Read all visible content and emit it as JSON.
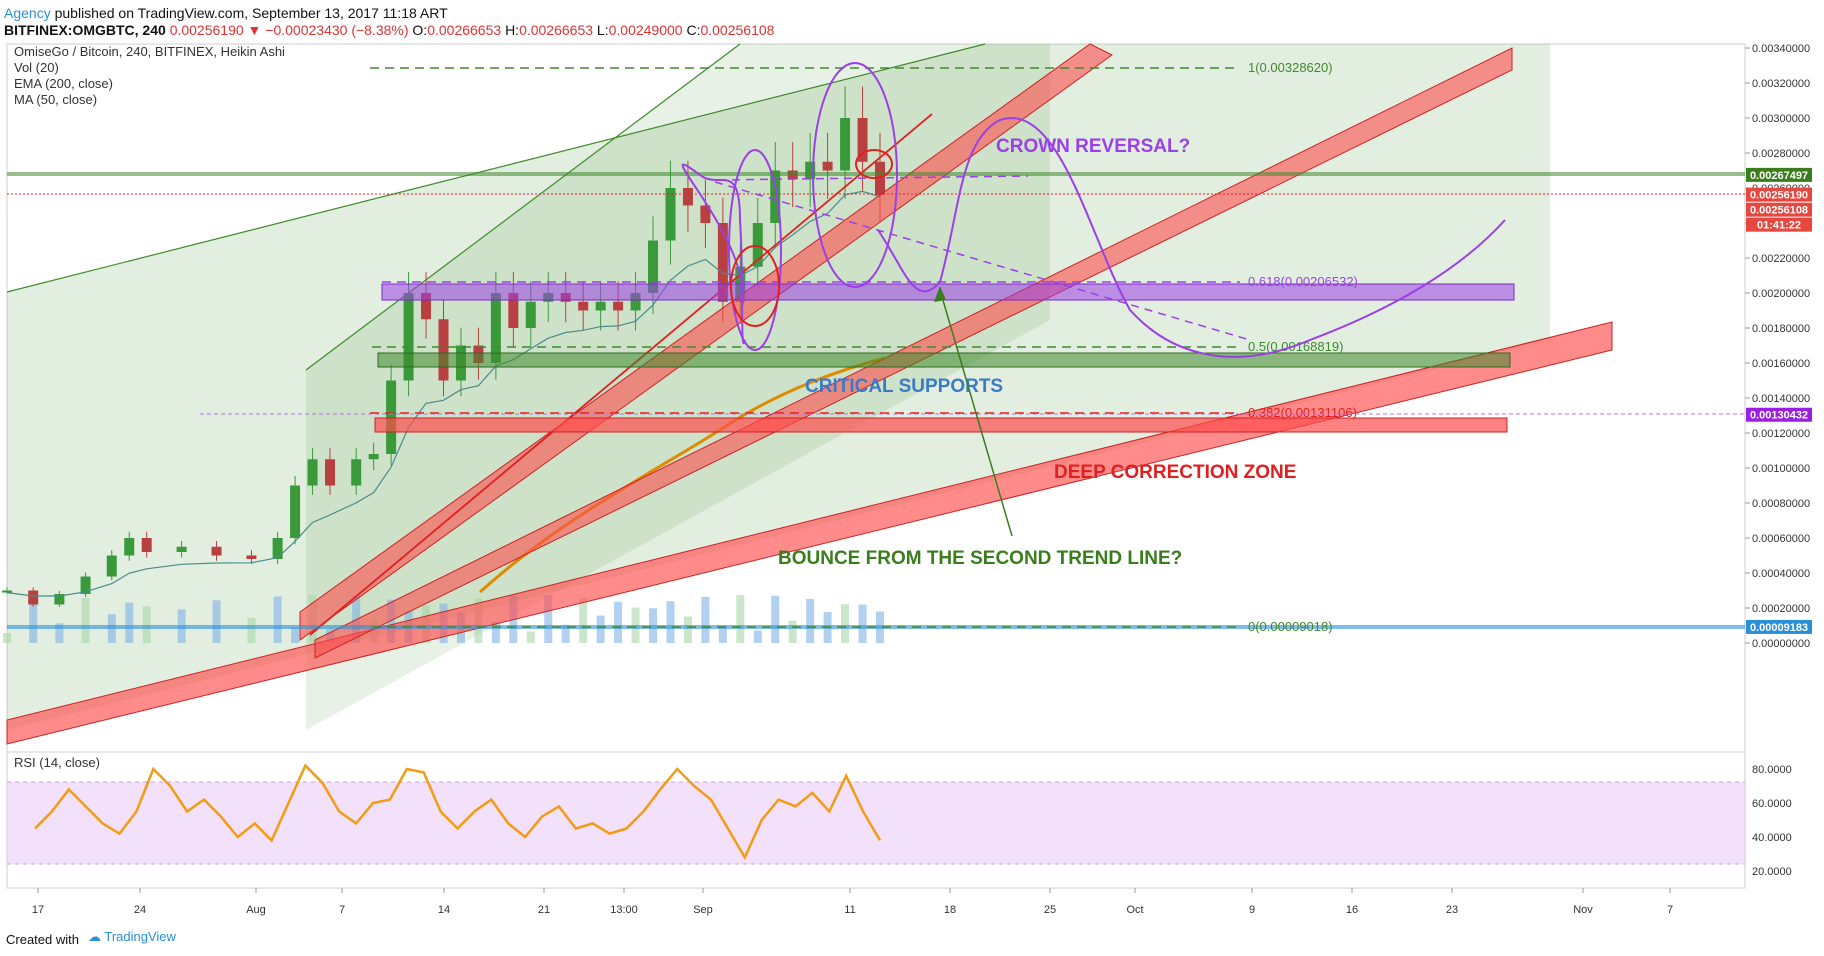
{
  "header": {
    "author": "Agency",
    "published": "published on TradingView.com, September 13, 2017 11:18 ART",
    "symbol": "BITFINEX:OMGBTC, 240",
    "last": "0.00256190",
    "change": "−0.00023430 (−8.38%)",
    "o_label": "O:",
    "o_value": "0.00266653",
    "h_label": "H:",
    "h_value": "0.00266653",
    "l_label": "L:",
    "l_value": "0.00249000",
    "c_label": "C:",
    "c_value": "0.00256108"
  },
  "legend": {
    "title": "OmiseGo / Bitcoin, 240, BITFINEX, Heikin Ashi",
    "vol": "Vol (20)",
    "ema": "EMA (200, close)",
    "ma": "MA (50, close)"
  },
  "rsi_label": "RSI (14, close)",
  "footer": {
    "created": "Created with",
    "brand": "TradingView"
  },
  "annotations": {
    "crown": "CROWN REVERSAL?",
    "supports": "CRITICAL SUPPORTS",
    "deep": "DEEP CORRECTION ZONE",
    "bounce": "BOUNCE FROM THE SECOND TREND LINE?"
  },
  "fib_labels": {
    "f100": "1(0.00328620)",
    "f618": "0.618(0.00206532)",
    "f50": "0.5(0.00168819)",
    "f382": "0.382(0.00131106)",
    "f0": "0(0.00009018)"
  },
  "price_badges": [
    {
      "text": "0.00267497",
      "color": "#3a7d1c",
      "value": 0.00267497
    },
    {
      "text": "0.00256190",
      "color": "#e8473f",
      "value": 0.0025619
    },
    {
      "text": "0.00256108",
      "color": "#e8473f",
      "value": 0.00256108
    },
    {
      "text": "01:41:22",
      "color": "#e8473f",
      "value": 0.002465
    },
    {
      "text": "0.00130432",
      "color": "#9b1fe0",
      "value": 0.00130432
    },
    {
      "text": "0.00009183",
      "color": "#2b8fd8",
      "value": 9.183e-05
    }
  ],
  "colors": {
    "bull": "#3a9a3a",
    "bear": "#b84040",
    "rsi": "#f39c12",
    "ema": "#4a8c8c",
    "ma": "#e08a00",
    "purple": "#9b3fe6"
  },
  "chart_data": {
    "type": "line",
    "title": "OmiseGo / Bitcoin, 240, BITFINEX, Heikin Ashi",
    "ylim": [
      0,
      0.0035
    ],
    "y_ticks": [
      "0.00340000",
      "0.00320000",
      "0.00300000",
      "0.00280000",
      "0.00260000",
      "0.00240000",
      "0.00220000",
      "0.00200000",
      "0.00180000",
      "0.00160000",
      "0.00140000",
      "0.00120000",
      "0.00100000",
      "0.00080000",
      "0.00060000",
      "0.00040000",
      "0.00020000",
      "0.00000000"
    ],
    "x_ticks": [
      "17",
      "24",
      "Aug",
      "7",
      "14",
      "21",
      "13:00",
      "Sep",
      "11",
      "18",
      "25",
      "Oct",
      "9",
      "16",
      "23",
      "Nov",
      "7"
    ],
    "rsi_ticks": [
      "80.0000",
      "60.0000",
      "40.0000",
      "20.0000"
    ],
    "rsi_band": [
      30,
      70
    ],
    "fib_levels": [
      0.0032862,
      0.00206532,
      0.00168819,
      0.00131106,
      9.018e-05
    ],
    "price": [
      {
        "x": 0,
        "y": 0.0003
      },
      {
        "x": 0.03,
        "y": 0.00022
      },
      {
        "x": 0.06,
        "y": 0.00028
      },
      {
        "x": 0.09,
        "y": 0.00038
      },
      {
        "x": 0.12,
        "y": 0.0005
      },
      {
        "x": 0.14,
        "y": 0.0006
      },
      {
        "x": 0.16,
        "y": 0.00052
      },
      {
        "x": 0.2,
        "y": 0.00055
      },
      {
        "x": 0.24,
        "y": 0.0005
      },
      {
        "x": 0.28,
        "y": 0.00048
      },
      {
        "x": 0.31,
        "y": 0.0006
      },
      {
        "x": 0.33,
        "y": 0.0009
      },
      {
        "x": 0.35,
        "y": 0.00105
      },
      {
        "x": 0.37,
        "y": 0.0009
      },
      {
        "x": 0.4,
        "y": 0.00105
      },
      {
        "x": 0.42,
        "y": 0.00108
      },
      {
        "x": 0.44,
        "y": 0.0015
      },
      {
        "x": 0.46,
        "y": 0.002
      },
      {
        "x": 0.48,
        "y": 0.00185
      },
      {
        "x": 0.5,
        "y": 0.0015
      },
      {
        "x": 0.52,
        "y": 0.0017
      },
      {
        "x": 0.54,
        "y": 0.0016
      },
      {
        "x": 0.56,
        "y": 0.002
      },
      {
        "x": 0.58,
        "y": 0.0018
      },
      {
        "x": 0.6,
        "y": 0.00195
      },
      {
        "x": 0.62,
        "y": 0.002
      },
      {
        "x": 0.64,
        "y": 0.00195
      },
      {
        "x": 0.66,
        "y": 0.0019
      },
      {
        "x": 0.68,
        "y": 0.00195
      },
      {
        "x": 0.7,
        "y": 0.0019
      },
      {
        "x": 0.72,
        "y": 0.002
      },
      {
        "x": 0.74,
        "y": 0.0023
      },
      {
        "x": 0.76,
        "y": 0.0026
      },
      {
        "x": 0.78,
        "y": 0.0025
      },
      {
        "x": 0.8,
        "y": 0.0024
      },
      {
        "x": 0.82,
        "y": 0.00195
      },
      {
        "x": 0.84,
        "y": 0.00215
      },
      {
        "x": 0.86,
        "y": 0.0024
      },
      {
        "x": 0.88,
        "y": 0.0027
      },
      {
        "x": 0.9,
        "y": 0.00265
      },
      {
        "x": 0.92,
        "y": 0.00275
      },
      {
        "x": 0.94,
        "y": 0.0027
      },
      {
        "x": 0.96,
        "y": 0.003
      },
      {
        "x": 0.98,
        "y": 0.00275
      },
      {
        "x": 1.0,
        "y": 0.00256
      }
    ],
    "rsi": [
      {
        "x": 0,
        "y": 45
      },
      {
        "x": 0.02,
        "y": 55
      },
      {
        "x": 0.04,
        "y": 68
      },
      {
        "x": 0.06,
        "y": 58
      },
      {
        "x": 0.08,
        "y": 48
      },
      {
        "x": 0.1,
        "y": 42
      },
      {
        "x": 0.12,
        "y": 55
      },
      {
        "x": 0.14,
        "y": 80
      },
      {
        "x": 0.16,
        "y": 70
      },
      {
        "x": 0.18,
        "y": 55
      },
      {
        "x": 0.2,
        "y": 62
      },
      {
        "x": 0.22,
        "y": 52
      },
      {
        "x": 0.24,
        "y": 40
      },
      {
        "x": 0.26,
        "y": 48
      },
      {
        "x": 0.28,
        "y": 38
      },
      {
        "x": 0.3,
        "y": 60
      },
      {
        "x": 0.32,
        "y": 82
      },
      {
        "x": 0.34,
        "y": 72
      },
      {
        "x": 0.36,
        "y": 55
      },
      {
        "x": 0.38,
        "y": 48
      },
      {
        "x": 0.4,
        "y": 60
      },
      {
        "x": 0.42,
        "y": 62
      },
      {
        "x": 0.44,
        "y": 80
      },
      {
        "x": 0.46,
        "y": 78
      },
      {
        "x": 0.48,
        "y": 55
      },
      {
        "x": 0.5,
        "y": 45
      },
      {
        "x": 0.52,
        "y": 55
      },
      {
        "x": 0.54,
        "y": 62
      },
      {
        "x": 0.56,
        "y": 48
      },
      {
        "x": 0.58,
        "y": 40
      },
      {
        "x": 0.6,
        "y": 52
      },
      {
        "x": 0.62,
        "y": 58
      },
      {
        "x": 0.64,
        "y": 45
      },
      {
        "x": 0.66,
        "y": 48
      },
      {
        "x": 0.68,
        "y": 42
      },
      {
        "x": 0.7,
        "y": 45
      },
      {
        "x": 0.72,
        "y": 55
      },
      {
        "x": 0.74,
        "y": 68
      },
      {
        "x": 0.76,
        "y": 80
      },
      {
        "x": 0.78,
        "y": 70
      },
      {
        "x": 0.8,
        "y": 62
      },
      {
        "x": 0.82,
        "y": 45
      },
      {
        "x": 0.84,
        "y": 28
      },
      {
        "x": 0.86,
        "y": 50
      },
      {
        "x": 0.88,
        "y": 62
      },
      {
        "x": 0.9,
        "y": 58
      },
      {
        "x": 0.92,
        "y": 66
      },
      {
        "x": 0.94,
        "y": 55
      },
      {
        "x": 0.96,
        "y": 76
      },
      {
        "x": 0.98,
        "y": 55
      },
      {
        "x": 1.0,
        "y": 38
      }
    ]
  }
}
